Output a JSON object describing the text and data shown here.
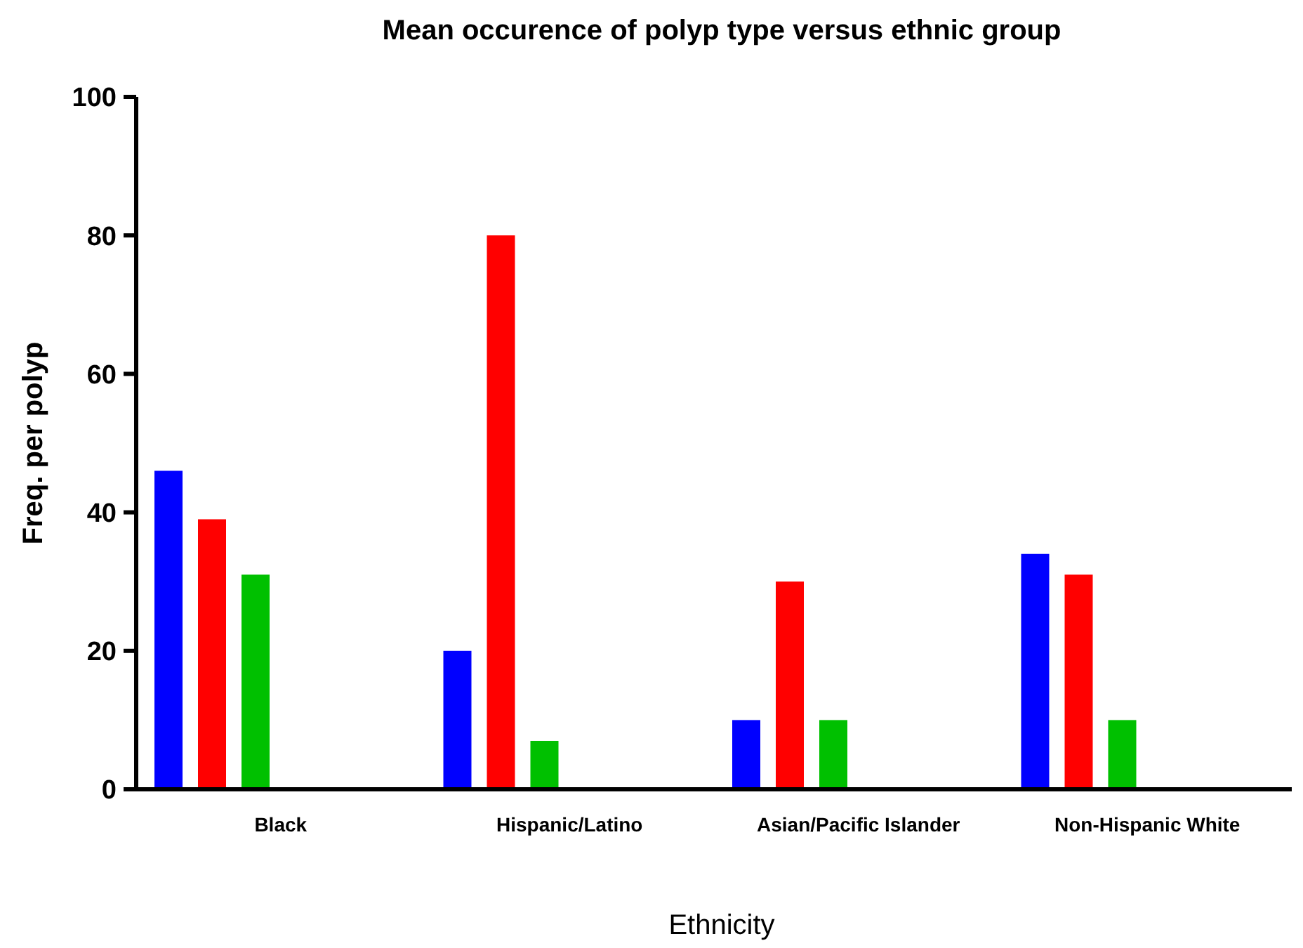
{
  "chart_data": {
    "type": "bar",
    "title": "Mean occurence of polyp type versus ethnic group",
    "xlabel": "Ethnicity",
    "ylabel": "Freq. per polyp",
    "categories": [
      "Black",
      "Hispanic/Latino",
      "Asian/Pacific Islander",
      "Non-Hispanic White"
    ],
    "series": [
      {
        "color": "#0000ff",
        "values": [
          46,
          20,
          10,
          34
        ]
      },
      {
        "color": "#ff0000",
        "values": [
          39,
          80,
          30,
          31
        ]
      },
      {
        "color": "#00c000",
        "values": [
          31,
          7,
          10,
          10
        ]
      }
    ],
    "ylim": [
      0,
      100
    ],
    "yticks": [
      0,
      20,
      40,
      60,
      80,
      100
    ]
  }
}
